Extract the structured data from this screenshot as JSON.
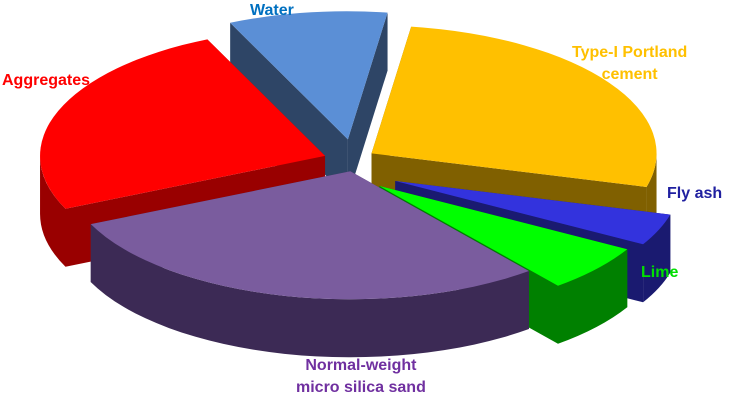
{
  "chart_data": {
    "type": "pie",
    "style": "3d-exploded",
    "title": "",
    "slices": [
      {
        "label": "Type-I Portland cement",
        "value": 27,
        "color": "#FFC000",
        "side_color": "#806000"
      },
      {
        "label": "Fly ash",
        "value": 4,
        "color": "#3333DD",
        "side_color": "#1A1A70"
      },
      {
        "label": "Lime",
        "value": 6,
        "color": "#00FF00",
        "side_color": "#008000"
      },
      {
        "label": "Normal-weight micro silica sand",
        "value": 29,
        "color": "#7A5C9E",
        "side_color": "#3C2A55"
      },
      {
        "label": "Aggregates",
        "value": 25,
        "color": "#FF0000",
        "side_color": "#990000"
      },
      {
        "label": "Water",
        "value": 9,
        "color": "#5B8FD6",
        "side_color": "#2E4566"
      }
    ],
    "label_colors": {
      "Type-I Portland cement": "#FFC000",
      "Fly ash": "#2020A0",
      "Lime": "#00E000",
      "Normal-weight micro silica sand": "#7030A0",
      "Aggregates": "#FF0000",
      "Water": "#0070C0"
    }
  },
  "labels": {
    "water": "Water",
    "cement_line1": "Type-I Portland",
    "cement_line2": "cement",
    "flyash": "Fly ash",
    "lime": "Lime",
    "sand_line1": "Normal-weight",
    "sand_line2": "micro silica sand",
    "aggregates": "Aggregates"
  }
}
